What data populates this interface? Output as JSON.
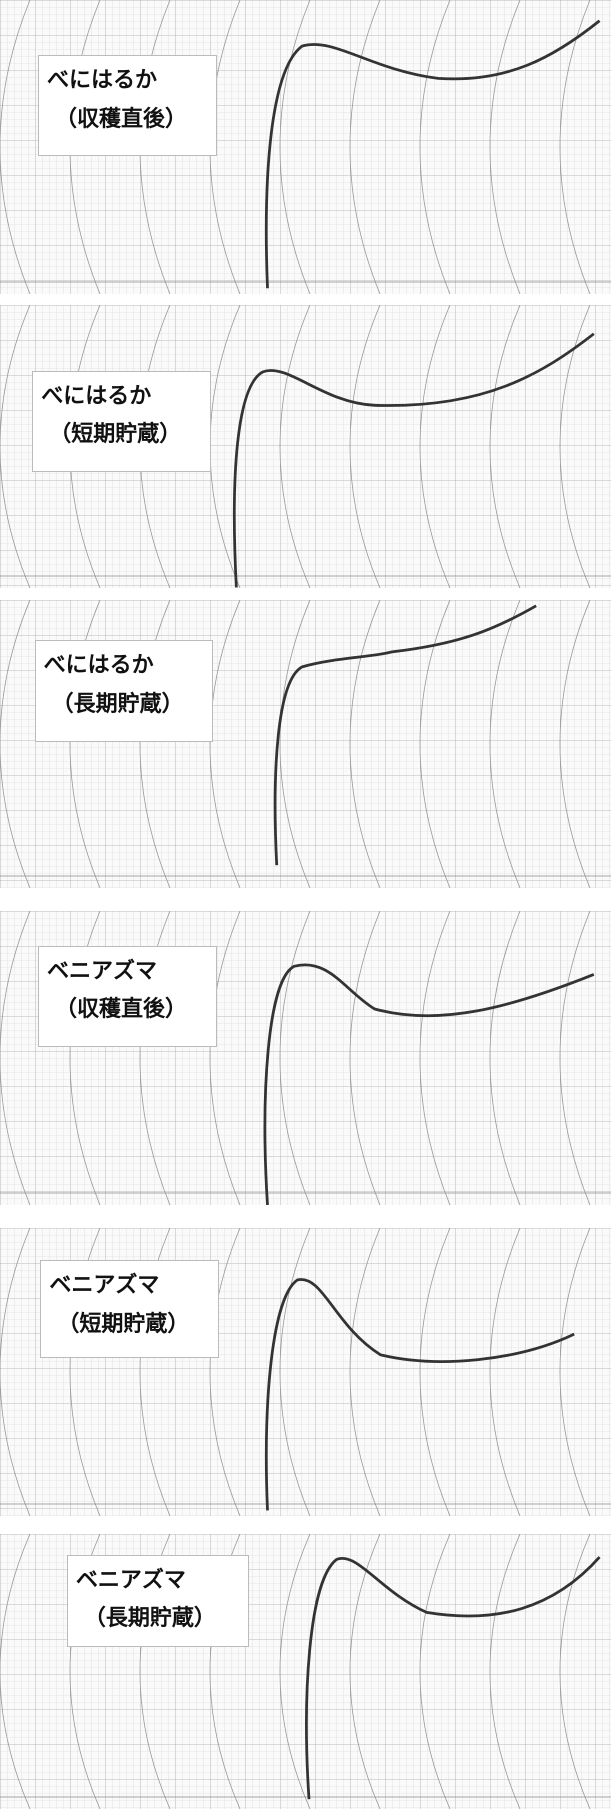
{
  "panels": [
    {
      "line1": "べにはるか",
      "line2": "（収穫直後）"
    },
    {
      "line1": "べにはるか",
      "line2": "（短期貯蔵）"
    },
    {
      "line1": "べにはるか",
      "line2": "（長期貯蔵）"
    },
    {
      "line1": "ベニアズマ",
      "line2": "（収穫直後）"
    },
    {
      "line1": "ベニアズマ",
      "line2": "（短期貯蔵）"
    },
    {
      "line1": "ベニアズマ",
      "line2": "（長期貯蔵）"
    }
  ]
}
